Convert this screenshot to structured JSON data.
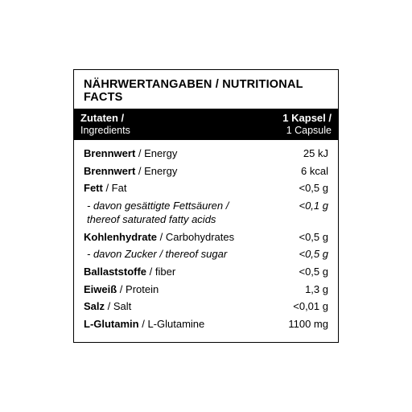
{
  "colors": {
    "border": "#000000",
    "header_bg": "#000000",
    "header_fg": "#ffffff",
    "text": "#000000",
    "bg": "#ffffff"
  },
  "typography": {
    "title_fontsize": 14.5,
    "row_fontsize": 13,
    "header_fontsize": 13
  },
  "title": "NÄHRWERTANGABEN / NUTRITIONAL FACTS",
  "header": {
    "left_de": "Zutaten /",
    "left_en": "Ingredients",
    "right_de": "1 Kapsel /",
    "right_en": "1 Capsule"
  },
  "rows": [
    {
      "de": "Brennwert",
      "en": "Energy",
      "value": "25 kJ",
      "sub": false
    },
    {
      "de": "Brennwert",
      "en": "Energy",
      "value": "6 kcal",
      "sub": false
    },
    {
      "de": "Fett",
      "en": "Fat",
      "value": "<0,5 g",
      "sub": false
    },
    {
      "de": "- davon gesättigte Fettsäuren /",
      "en2": "thereof saturated fatty acids",
      "value": "<0,1 g",
      "sub": true,
      "twoLine": true
    },
    {
      "de": "Kohlenhydrate",
      "en": "Carbohydrates",
      "value": "<0,5 g",
      "sub": false
    },
    {
      "de": "- davon Zucker / thereof sugar",
      "value": "<0,5 g",
      "sub": true
    },
    {
      "de": "Ballaststoffe",
      "en": "fiber",
      "value": "<0,5 g",
      "sub": false
    },
    {
      "de": "Eiweiß",
      "en": "Protein",
      "value": "1,3 g",
      "sub": false
    },
    {
      "de": "Salz",
      "en": "Salt",
      "value": "<0,01 g",
      "sub": false
    },
    {
      "de": "L-Glutamin",
      "en": "L-Glutamine",
      "value": "1100 mg",
      "sub": false
    }
  ]
}
